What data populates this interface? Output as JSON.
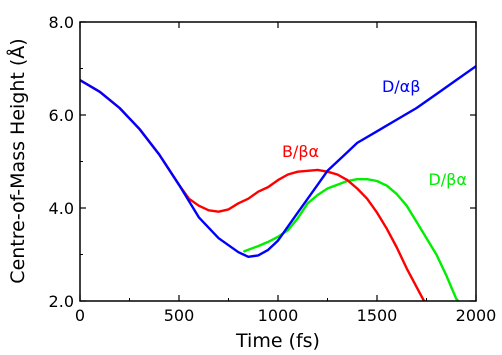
{
  "chart_data": {
    "type": "line",
    "title": "",
    "xlabel": "Time (fs)",
    "ylabel": "Centre-of-Mass Height (Å)",
    "xlim": [
      0,
      2000
    ],
    "ylim": [
      2.0,
      8.0
    ],
    "xticks": [
      "0",
      "500",
      "1000",
      "1500",
      "2000"
    ],
    "yticks": [
      "2.0",
      "4.0",
      "6.0",
      "8.0"
    ],
    "grid": false,
    "legend": "none",
    "series": [
      {
        "name": "D/αβ",
        "color": "#0000ff",
        "x": [
          0,
          100,
          200,
          300,
          400,
          500,
          600,
          700,
          800,
          850,
          900,
          950,
          1000,
          1050,
          1100,
          1150,
          1200,
          1250,
          1300,
          1350,
          1400,
          1500,
          1600,
          1700,
          1800,
          1900,
          2000
        ],
        "y": [
          6.75,
          6.5,
          6.15,
          5.7,
          5.15,
          4.5,
          3.8,
          3.35,
          3.05,
          2.95,
          2.98,
          3.1,
          3.3,
          3.6,
          3.9,
          4.2,
          4.5,
          4.8,
          5.0,
          5.2,
          5.4,
          5.65,
          5.9,
          6.15,
          6.45,
          6.75,
          7.05
        ]
      },
      {
        "name": "B/βα",
        "color": "#ff0000",
        "x": [
          0,
          100,
          200,
          300,
          400,
          500,
          550,
          600,
          650,
          700,
          750,
          800,
          850,
          900,
          950,
          1000,
          1050,
          1100,
          1150,
          1200,
          1250,
          1300,
          1350,
          1400,
          1450,
          1500,
          1550,
          1600,
          1650,
          1700,
          1750
        ],
        "y": [
          6.75,
          6.5,
          6.15,
          5.7,
          5.15,
          4.5,
          4.2,
          4.05,
          3.95,
          3.92,
          3.97,
          4.1,
          4.2,
          4.35,
          4.45,
          4.6,
          4.72,
          4.78,
          4.8,
          4.82,
          4.78,
          4.72,
          4.6,
          4.42,
          4.2,
          3.9,
          3.55,
          3.15,
          2.7,
          2.3,
          1.9
        ]
      },
      {
        "name": "D/βα",
        "color": "#00ee00",
        "x": [
          830,
          900,
          950,
          1000,
          1050,
          1100,
          1150,
          1200,
          1250,
          1300,
          1350,
          1400,
          1450,
          1500,
          1550,
          1600,
          1650,
          1700,
          1750,
          1800,
          1850,
          1900,
          1950
        ],
        "y": [
          3.07,
          3.18,
          3.27,
          3.38,
          3.52,
          3.78,
          4.1,
          4.28,
          4.42,
          4.5,
          4.58,
          4.62,
          4.62,
          4.58,
          4.48,
          4.3,
          4.05,
          3.7,
          3.35,
          3.0,
          2.55,
          2.05,
          1.8
        ]
      }
    ]
  }
}
